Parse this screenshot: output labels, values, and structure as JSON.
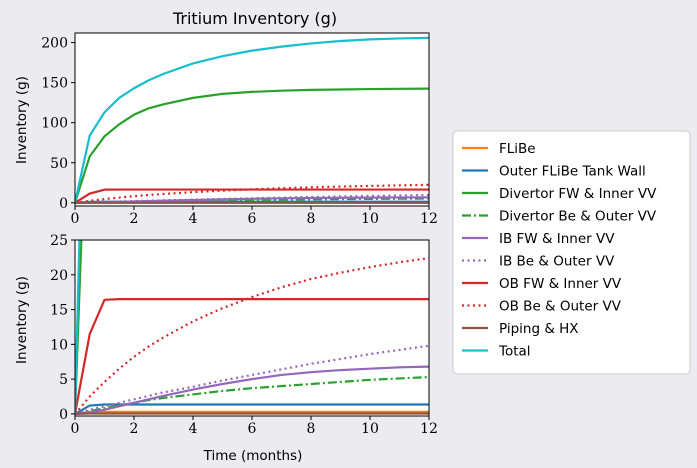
{
  "chart_data": {
    "type": "line",
    "title": "Tritium Inventory (g)",
    "xlabel": "Time (months)",
    "ylabel": "Inventory (g)",
    "xlim": [
      0,
      12
    ],
    "xticks": [
      0,
      2,
      4,
      6,
      8,
      10,
      12
    ],
    "grid": false,
    "legend_placement": "right",
    "panels": [
      {
        "name": "top",
        "ylim": [
          -4,
          212
        ],
        "yticks": [
          0,
          50,
          100,
          150,
          200
        ]
      },
      {
        "name": "bottom",
        "ylim": [
          -0.3,
          25
        ],
        "yticks": [
          0,
          5,
          10,
          15,
          20,
          25
        ]
      }
    ],
    "x": [
      0,
      0.5,
      1,
      1.5,
      2,
      2.5,
      3,
      4,
      5,
      6,
      7,
      8,
      9,
      10,
      11,
      12
    ],
    "series": [
      {
        "name": "FLiBe",
        "color": "#ff7f0e",
        "dash": "solid",
        "values": [
          0,
          0.3,
          0.3,
          0.3,
          0.3,
          0.3,
          0.3,
          0.3,
          0.3,
          0.3,
          0.3,
          0.3,
          0.3,
          0.3,
          0.3,
          0.3
        ]
      },
      {
        "name": "Outer FLiBe Tank Wall",
        "color": "#1f77b4",
        "dash": "solid",
        "values": [
          0,
          1.2,
          1.35,
          1.35,
          1.35,
          1.35,
          1.35,
          1.35,
          1.35,
          1.35,
          1.35,
          1.35,
          1.35,
          1.35,
          1.35,
          1.35
        ]
      },
      {
        "name": "Divertor FW & Inner VV",
        "color": "#2ca02c",
        "dash": "solid",
        "values": [
          0,
          58,
          83,
          98,
          110,
          118,
          123,
          131,
          136,
          138.5,
          140,
          141,
          141.5,
          142,
          142.3,
          142.5
        ]
      },
      {
        "name": "Divertor Be & Outer VV",
        "color": "#2ca02c",
        "dash": "dashdot",
        "values": [
          0,
          0.4,
          0.8,
          1.2,
          1.6,
          2.0,
          2.3,
          2.8,
          3.3,
          3.7,
          4.0,
          4.3,
          4.6,
          4.9,
          5.1,
          5.3
        ]
      },
      {
        "name": "IB FW & Inner VV",
        "color": "#9467bd",
        "dash": "solid",
        "values": [
          0,
          0.2,
          0.6,
          1.1,
          1.6,
          2.1,
          2.6,
          3.5,
          4.3,
          5.0,
          5.6,
          6.0,
          6.3,
          6.5,
          6.7,
          6.8
        ]
      },
      {
        "name": "IB Be & Outer VV",
        "color": "#9467bd",
        "dash": "dotted",
        "values": [
          0,
          0.6,
          1.1,
          1.6,
          2.1,
          2.6,
          3.1,
          3.9,
          4.8,
          5.6,
          6.4,
          7.2,
          7.9,
          8.6,
          9.2,
          9.8
        ]
      },
      {
        "name": "OB FW & Inner VV",
        "color": "#d62728",
        "dash": "solid",
        "values": [
          0,
          11.5,
          16.4,
          16.5,
          16.5,
          16.5,
          16.5,
          16.5,
          16.5,
          16.5,
          16.5,
          16.5,
          16.5,
          16.5,
          16.5,
          16.5
        ]
      },
      {
        "name": "OB Be & Outer VV",
        "color": "#d62728",
        "dash": "dotted",
        "values": [
          0,
          2.5,
          4.6,
          6.5,
          8.2,
          9.7,
          11.0,
          13.3,
          15.2,
          16.8,
          18.2,
          19.4,
          20.3,
          21.1,
          21.8,
          22.4
        ]
      },
      {
        "name": "Piping & HX",
        "color": "#8c564b",
        "dash": "solid",
        "values": [
          0,
          0.05,
          0.06,
          0.06,
          0.06,
          0.06,
          0.06,
          0.06,
          0.06,
          0.06,
          0.06,
          0.06,
          0.06,
          0.06,
          0.06,
          0.06
        ]
      },
      {
        "name": "Total",
        "color": "#17becf",
        "dash": "solid",
        "values": [
          0,
          84,
          113,
          131,
          143,
          153,
          161,
          174,
          183,
          190,
          195,
          199,
          202,
          204,
          205.2,
          206
        ]
      }
    ]
  }
}
